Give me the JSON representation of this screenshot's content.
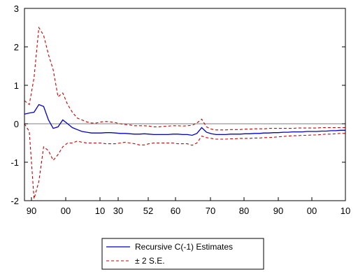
{
  "chart_data": {
    "type": "line",
    "title": "",
    "xlabel": "",
    "ylabel": "",
    "ylim": [
      -2,
      3
    ],
    "yticks": [
      3,
      2,
      1,
      0,
      -1,
      -2
    ],
    "x_tick_labels": [
      "90",
      "00",
      "10",
      "30",
      "52",
      "60",
      "70",
      "80",
      "90",
      "00",
      "10"
    ],
    "grid": false,
    "legend": "bottom-center",
    "series": [
      {
        "name": "Recursive C(-1) Estimates",
        "color": "#0000cc",
        "style": "solid",
        "values": [
          0.25,
          0.28,
          0.3,
          0.5,
          0.45,
          0.1,
          -0.12,
          -0.08,
          0.1,
          0.0,
          -0.1,
          -0.15,
          -0.2,
          -0.22,
          -0.24,
          -0.24,
          -0.24,
          -0.23,
          -0.23,
          -0.24,
          -0.25,
          -0.25,
          -0.26,
          -0.27,
          -0.27,
          -0.26,
          -0.27,
          -0.28,
          -0.28,
          -0.28,
          -0.28,
          -0.27,
          -0.27,
          -0.28,
          -0.28,
          -0.3,
          -0.25,
          -0.1,
          -0.22,
          -0.26,
          -0.28,
          -0.28,
          -0.28,
          -0.27,
          -0.27,
          -0.27,
          -0.26,
          -0.26,
          -0.25,
          -0.25,
          -0.24,
          -0.24,
          -0.23,
          -0.23,
          -0.22,
          -0.22,
          -0.21,
          -0.21,
          -0.21,
          -0.2,
          -0.2,
          -0.2,
          -0.19,
          -0.19,
          -0.18,
          -0.18,
          -0.17,
          -0.17
        ]
      },
      {
        "name": "± 2 S.E.",
        "color": "#cc0000",
        "style": "dashed",
        "values": [
          0.6,
          0.5,
          1.2,
          2.5,
          2.3,
          1.8,
          1.4,
          0.7,
          0.8,
          0.5,
          0.3,
          0.15,
          0.1,
          0.05,
          0.02,
          0.02,
          0.05,
          0.06,
          0.05,
          0.03,
          0.0,
          -0.02,
          -0.03,
          -0.05,
          -0.05,
          -0.05,
          -0.06,
          -0.08,
          -0.08,
          -0.07,
          -0.06,
          -0.05,
          -0.05,
          -0.06,
          -0.05,
          -0.04,
          0.02,
          0.12,
          -0.08,
          -0.14,
          -0.16,
          -0.16,
          -0.16,
          -0.15,
          -0.15,
          -0.15,
          -0.14,
          -0.14,
          -0.13,
          -0.13,
          -0.13,
          -0.12,
          -0.12,
          -0.12,
          -0.12,
          -0.12,
          -0.12,
          -0.11,
          -0.11,
          -0.11,
          -0.11,
          -0.11,
          -0.1,
          -0.1,
          -0.1,
          -0.1,
          -0.1,
          -0.1
        ]
      },
      {
        "name": "",
        "color": "#cc0000",
        "style": "dashed",
        "values": [
          0.0,
          -0.2,
          -1.95,
          -1.5,
          -0.6,
          -0.7,
          -0.95,
          -0.8,
          -0.6,
          -0.5,
          -0.5,
          -0.45,
          -0.48,
          -0.5,
          -0.5,
          -0.5,
          -0.5,
          -0.52,
          -0.52,
          -0.52,
          -0.5,
          -0.48,
          -0.5,
          -0.52,
          -0.55,
          -0.55,
          -0.52,
          -0.5,
          -0.5,
          -0.5,
          -0.5,
          -0.5,
          -0.52,
          -0.52,
          -0.52,
          -0.56,
          -0.5,
          -0.32,
          -0.36,
          -0.38,
          -0.4,
          -0.4,
          -0.4,
          -0.39,
          -0.39,
          -0.38,
          -0.38,
          -0.38,
          -0.37,
          -0.37,
          -0.36,
          -0.36,
          -0.35,
          -0.34,
          -0.33,
          -0.32,
          -0.31,
          -0.31,
          -0.3,
          -0.3,
          -0.29,
          -0.29,
          -0.28,
          -0.27,
          -0.27,
          -0.26,
          -0.25,
          -0.25
        ]
      }
    ]
  }
}
